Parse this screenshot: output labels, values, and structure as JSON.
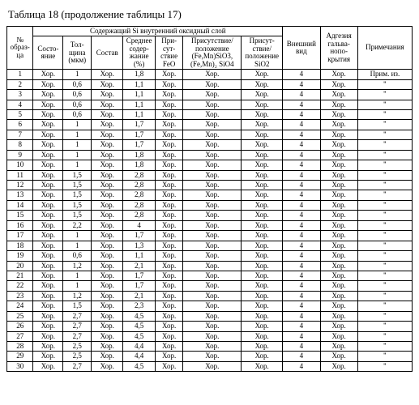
{
  "title": "Таблица 18 (продолжение таблицы 17)",
  "headers": {
    "sample_no": "№\nобраз-\nца",
    "group": "Содержащий Si внутренний оксидный слой",
    "state": "Состо-\nяние",
    "thickness": "Тол-\nщина\n(мкм)",
    "composition": "Состав",
    "avg": "Среднее\nсодер-\nжание\n(%)",
    "feo": "При-\nсут-\nствие\nFeO",
    "pres1": "Присутствие/\nположение\n(Fe,Mn)SiO3,\n(Fe,Mn)₂ SiO4",
    "pres2": "Присут-\nствие/\nположение\nSiO2",
    "view": "Внешний\nвид",
    "adhesion": "Адгезия\nгальва-\nнопо-\nкрытия",
    "notes": "Примечания"
  },
  "khor": "Хор.",
  "prim_iz": "Прим. из.",
  "ditto": "\"",
  "four": "4",
  "rows": [
    {
      "n": "1",
      "t": "1",
      "avg": "1,8"
    },
    {
      "n": "2",
      "t": "0,6",
      "avg": "1,1"
    },
    {
      "n": "3",
      "t": "0,6",
      "avg": "1,1"
    },
    {
      "n": "4",
      "t": "0,6",
      "avg": "1,1"
    },
    {
      "n": "5",
      "t": "0,6",
      "avg": "1,1"
    },
    {
      "n": "6",
      "t": "1",
      "avg": "1,7"
    },
    {
      "n": "7",
      "t": "1",
      "avg": "1,7"
    },
    {
      "n": "8",
      "t": "1",
      "avg": "1,7"
    },
    {
      "n": "9",
      "t": "1",
      "avg": "1,8"
    },
    {
      "n": "10",
      "t": "1",
      "avg": "1,8"
    },
    {
      "n": "11",
      "t": "1,5",
      "avg": "2,8"
    },
    {
      "n": "12",
      "t": "1,5",
      "avg": "2,8"
    },
    {
      "n": "13",
      "t": "1,5",
      "avg": "2,8"
    },
    {
      "n": "14",
      "t": "1,5",
      "avg": "2,8"
    },
    {
      "n": "15",
      "t": "1,5",
      "avg": "2,8"
    },
    {
      "n": "16",
      "t": "2,2",
      "avg": "4"
    },
    {
      "n": "17",
      "t": "1",
      "avg": "1,7"
    },
    {
      "n": "18",
      "t": "1",
      "avg": "1,3"
    },
    {
      "n": "19",
      "t": "0,6",
      "avg": "1,1"
    },
    {
      "n": "20",
      "t": "1,2",
      "avg": "2,1"
    },
    {
      "n": "21",
      "t": "1",
      "avg": "1,7"
    },
    {
      "n": "22",
      "t": "1",
      "avg": "1,7"
    },
    {
      "n": "23",
      "t": "1,2",
      "avg": "2,1"
    },
    {
      "n": "24",
      "t": "1,5",
      "avg": "2,3"
    },
    {
      "n": "25",
      "t": "2,7",
      "avg": "4,5"
    },
    {
      "n": "26",
      "t": "2,7",
      "avg": "4,5"
    },
    {
      "n": "27",
      "t": "2,7",
      "avg": "4,5"
    },
    {
      "n": "28",
      "t": "2,5",
      "avg": "4,4"
    },
    {
      "n": "29",
      "t": "2,5",
      "avg": "4,4"
    },
    {
      "n": "30",
      "t": "2,7",
      "avg": "4,5"
    }
  ]
}
